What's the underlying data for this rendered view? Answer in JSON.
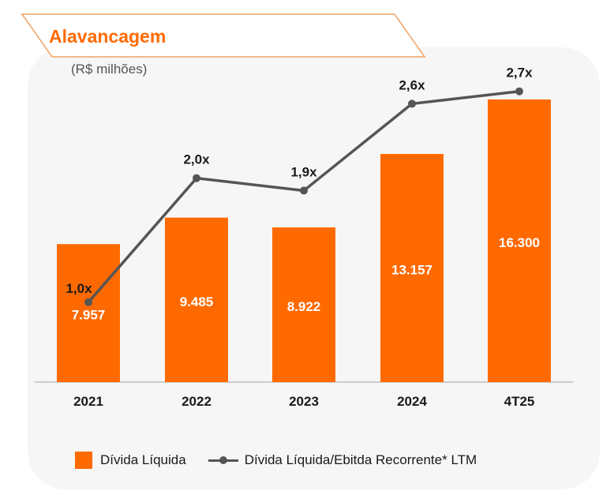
{
  "title": "Alavancagem",
  "subtitle": "(R$ milhões)",
  "colors": {
    "bar": "#ff6a00",
    "line": "#555555",
    "title": "#ff6a00"
  },
  "legend": {
    "bar_label": "Dívida Líquida",
    "line_label": "Dívida Líquida/Ebitda Recorrente* LTM"
  },
  "chart_data": {
    "type": "bar",
    "title": "Alavancagem",
    "subtitle": "(R$ milhões)",
    "categories": [
      "2021",
      "2022",
      "2023",
      "2024",
      "4T25"
    ],
    "series": [
      {
        "name": "Dívida Líquida",
        "type": "bar",
        "values": [
          7957,
          9485,
          8922,
          13157,
          16300
        ],
        "labels": [
          "7.957",
          "9.485",
          "8.922",
          "13.157",
          "16.300"
        ]
      },
      {
        "name": "Dívida Líquida/Ebitda Recorrente* LTM",
        "type": "line",
        "values": [
          1.0,
          2.0,
          1.9,
          2.6,
          2.7
        ],
        "labels": [
          "1,0x",
          "2,0x",
          "1,9x",
          "2,6x",
          "2,7x"
        ]
      }
    ],
    "ylim": [
      0,
      16300
    ],
    "y2lim": [
      0.7,
      2.8
    ],
    "grid": false,
    "legend_position": "bottom"
  }
}
